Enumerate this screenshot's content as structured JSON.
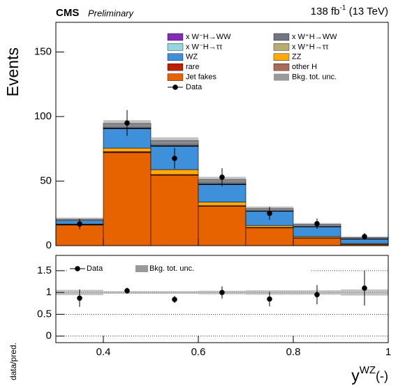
{
  "chart_data": {
    "type": "stacked_histogram",
    "experiment": "CMS",
    "status": "Preliminary",
    "lumi": {
      "base": "138 fb",
      "sup": "-1",
      "suffix": " (13 TeV)"
    },
    "y_label": "Events",
    "x_label": {
      "base": "y",
      "sup": "WZ",
      "suffix": "(-)"
    },
    "bins": [
      0.3,
      0.4,
      0.5,
      0.6,
      0.7,
      0.8,
      0.9,
      1.0
    ],
    "xlim": [
      0.3,
      1.0
    ],
    "xticks": [
      0.4,
      0.6,
      0.8,
      1
    ],
    "ylim": [
      0,
      173
    ],
    "yticks": [
      0,
      50,
      100,
      150
    ],
    "series": [
      {
        "name": "Jet fakes",
        "color": "#e76300",
        "values": [
          16,
          72,
          54.5,
          30.5,
          13.8,
          5.8,
          0.9
        ]
      },
      {
        "name": "rare",
        "color": "#bd1f01",
        "values": [
          0.3,
          0.8,
          0.6,
          0.4,
          0.3,
          0.2,
          0.1
        ]
      },
      {
        "name": "ZZ",
        "color": "#ffa90e",
        "values": [
          0.4,
          2.8,
          3.8,
          2.8,
          1.5,
          1,
          0.6
        ]
      },
      {
        "name": "WZ",
        "color": "#3f90da",
        "values": [
          2.8,
          15,
          18,
          13.5,
          11,
          7.5,
          3.4
        ]
      },
      {
        "name": "other H",
        "color": "#a96b59",
        "values": [
          0.1,
          0.2,
          0.2,
          0.2,
          0.1,
          0.1,
          0.1
        ]
      },
      {
        "name": "x W⁺H→ττ",
        "color": "#b9ac70",
        "values": [
          0.1,
          0.2,
          0.2,
          0.2,
          0.1,
          0.1,
          0.1
        ]
      },
      {
        "name": "x W⁻H→ττ",
        "color": "#94d7e0",
        "values": [
          0.1,
          0.1,
          0.1,
          0.1,
          0.1,
          0.1,
          0.1
        ]
      },
      {
        "name": "x W⁺H→WW",
        "color": "#717581",
        "values": [
          0.6,
          3.4,
          3.8,
          3.5,
          1.8,
          1.6,
          0.9
        ]
      },
      {
        "name": "x W⁻H→WW",
        "color": "#832db6",
        "values": [
          0.1,
          0.2,
          0.2,
          0.1,
          0.1,
          0.1,
          0.1
        ]
      }
    ],
    "bkg_unc": {
      "name": "Bkg. tot. unc.",
      "color": "#999999",
      "values": [
        1.2,
        2.5,
        2.5,
        2,
        1.5,
        1,
        0.8
      ]
    },
    "data": {
      "name": "Data",
      "color": "#000000",
      "x": [
        0.35,
        0.45,
        0.55,
        0.65,
        0.75,
        0.85,
        0.95
      ],
      "values": [
        16.8,
        95,
        67.6,
        53,
        25,
        17,
        7
      ],
      "errors": [
        4,
        10,
        8,
        7,
        5,
        4,
        2.6
      ]
    },
    "ratio": {
      "y_label": "data/pred.",
      "ylim": [
        -0.15,
        1.85
      ],
      "yticks": [
        0,
        0.5,
        1,
        1.5
      ],
      "values": [
        0.87,
        1.04,
        0.84,
        1.0,
        0.85,
        0.95,
        1.1
      ],
      "errors": [
        0.2,
        0.07,
        0.08,
        0.14,
        0.17,
        0.22,
        0.4
      ],
      "unc": [
        0.06,
        0.03,
        0.03,
        0.04,
        0.05,
        0.05,
        0.07
      ]
    }
  }
}
